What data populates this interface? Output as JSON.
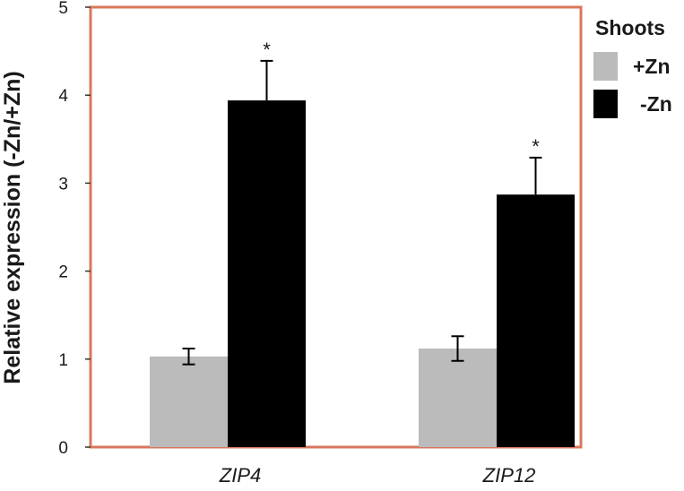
{
  "chart_data": {
    "type": "bar",
    "title": "",
    "xlabel": "",
    "ylabel": "Relative expression (-Zn/+Zn)",
    "ylim": [
      0,
      5
    ],
    "yticks": [
      "0",
      "1",
      "2",
      "3",
      "4",
      "5"
    ],
    "categories": [
      "ZIP4",
      "ZIP12"
    ],
    "series": [
      {
        "name": "+Zn",
        "color": "#bbbbbb",
        "values": [
          1.03,
          1.12
        ],
        "errors": [
          0.09,
          0.14
        ],
        "significance": [
          "",
          ""
        ]
      },
      {
        "name": "-Zn",
        "color": "#000000",
        "values": [
          3.94,
          2.87
        ],
        "errors": [
          0.45,
          0.42
        ],
        "significance": [
          "*",
          "*"
        ]
      }
    ],
    "legend": {
      "title": "Shoots",
      "position": "top-right, outside plot"
    },
    "grid": false,
    "frame_color": "#d9775c"
  }
}
